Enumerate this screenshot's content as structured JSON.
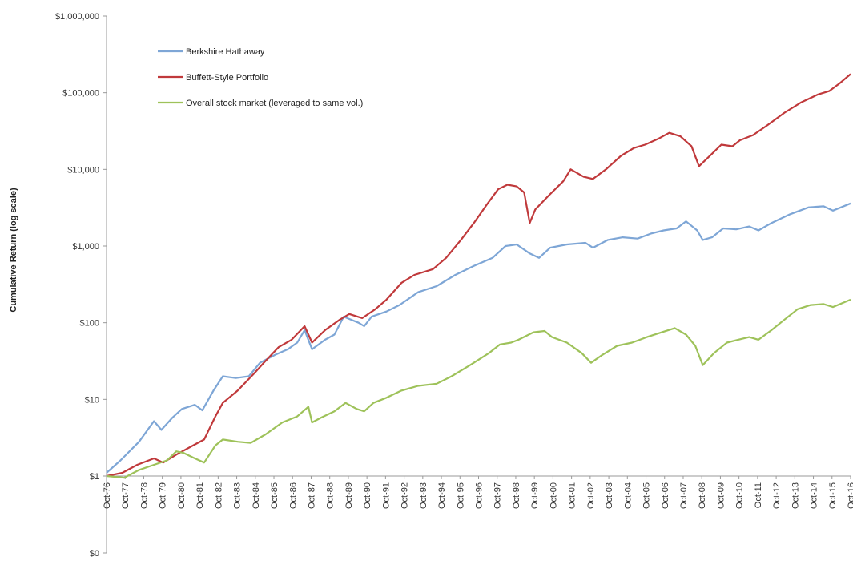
{
  "chart_data": {
    "type": "line",
    "title": "",
    "ylabel": "Cumulative Return  (log scale)",
    "xlabel": "",
    "y_scale": "log",
    "ylim": [
      1,
      1000000
    ],
    "y_ticks": [
      {
        "value": 1000000,
        "label": "$1,000,000"
      },
      {
        "value": 100000,
        "label": "$100,000"
      },
      {
        "value": 10000,
        "label": "$10,000"
      },
      {
        "value": 1000,
        "label": "$1,000"
      },
      {
        "value": 100,
        "label": "$100"
      },
      {
        "value": 10,
        "label": "$10"
      },
      {
        "value": 1,
        "label": "$1"
      }
    ],
    "y_extra_label": "$0",
    "x_range": [
      1976.75,
      2016.75
    ],
    "x_ticks": [
      "Oct-76",
      "Oct-77",
      "Oct-78",
      "Oct-79",
      "Oct-80",
      "Oct-81",
      "Oct-82",
      "Oct-83",
      "Oct-84",
      "Oct-85",
      "Oct-86",
      "Oct-87",
      "Oct-88",
      "Oct-89",
      "Oct-90",
      "Oct-91",
      "Oct-92",
      "Oct-93",
      "Oct-94",
      "Oct-95",
      "Oct-96",
      "Oct-97",
      "Oct-98",
      "Oct-99",
      "Oct-00",
      "Oct-01",
      "Oct-02",
      "Oct-03",
      "Oct-04",
      "Oct-05",
      "Oct-06",
      "Oct-07",
      "Oct-08",
      "Oct-09",
      "Oct-10",
      "Oct-11",
      "Oct-12",
      "Oct-13",
      "Oct-14",
      "Oct-15",
      "Oct-16"
    ],
    "grid": false,
    "legend_position": "top-left",
    "series": [
      {
        "name": "Berkshire Hathaway",
        "color": "#7ea6d6",
        "points": [
          [
            1976.75,
            1.1
          ],
          [
            1977.5,
            1.6
          ],
          [
            1978.5,
            2.8
          ],
          [
            1979.3,
            5.2
          ],
          [
            1979.7,
            4.0
          ],
          [
            1980.3,
            5.8
          ],
          [
            1980.8,
            7.5
          ],
          [
            1981.5,
            8.5
          ],
          [
            1981.9,
            7.2
          ],
          [
            1982.5,
            13
          ],
          [
            1983,
            20
          ],
          [
            1983.7,
            19
          ],
          [
            1984.4,
            20
          ],
          [
            1985,
            30
          ],
          [
            1985.8,
            38
          ],
          [
            1986.5,
            45
          ],
          [
            1987,
            55
          ],
          [
            1987.4,
            80
          ],
          [
            1987.8,
            45
          ],
          [
            1988.5,
            60
          ],
          [
            1989,
            70
          ],
          [
            1989.5,
            120
          ],
          [
            1990.3,
            100
          ],
          [
            1990.6,
            90
          ],
          [
            1991,
            120
          ],
          [
            1991.8,
            140
          ],
          [
            1992.5,
            170
          ],
          [
            1993.5,
            250
          ],
          [
            1994.5,
            300
          ],
          [
            1995.5,
            420
          ],
          [
            1996.5,
            550
          ],
          [
            1997.5,
            700
          ],
          [
            1998.2,
            1000
          ],
          [
            1998.8,
            1050
          ],
          [
            1999.5,
            800
          ],
          [
            2000,
            700
          ],
          [
            2000.6,
            950
          ],
          [
            2001.5,
            1050
          ],
          [
            2002.5,
            1100
          ],
          [
            2002.9,
            950
          ],
          [
            2003.7,
            1200
          ],
          [
            2004.5,
            1300
          ],
          [
            2005.3,
            1250
          ],
          [
            2006,
            1450
          ],
          [
            2006.7,
            1600
          ],
          [
            2007.4,
            1700
          ],
          [
            2007.9,
            2100
          ],
          [
            2008.5,
            1600
          ],
          [
            2008.8,
            1200
          ],
          [
            2009.3,
            1300
          ],
          [
            2009.9,
            1700
          ],
          [
            2010.6,
            1650
          ],
          [
            2011.3,
            1800
          ],
          [
            2011.8,
            1600
          ],
          [
            2012.5,
            2000
          ],
          [
            2013.5,
            2600
          ],
          [
            2014.5,
            3200
          ],
          [
            2015.3,
            3300
          ],
          [
            2015.8,
            2900
          ],
          [
            2016.75,
            3600
          ]
        ]
      },
      {
        "name": "Buffett-Style Portfolio",
        "color": "#c0393b",
        "points": [
          [
            1976.75,
            1.0
          ],
          [
            1977.6,
            1.1
          ],
          [
            1978.4,
            1.4
          ],
          [
            1979.3,
            1.7
          ],
          [
            1979.8,
            1.5
          ],
          [
            1980.5,
            1.9
          ],
          [
            1981.4,
            2.5
          ],
          [
            1982,
            3.0
          ],
          [
            1982.6,
            6
          ],
          [
            1983,
            9
          ],
          [
            1983.8,
            13
          ],
          [
            1984.7,
            22
          ],
          [
            1985.2,
            30
          ],
          [
            1986,
            48
          ],
          [
            1986.7,
            60
          ],
          [
            1987.4,
            90
          ],
          [
            1987.8,
            55
          ],
          [
            1988.5,
            80
          ],
          [
            1989.3,
            110
          ],
          [
            1989.8,
            130
          ],
          [
            1990.5,
            115
          ],
          [
            1991.2,
            150
          ],
          [
            1991.8,
            200
          ],
          [
            1992.6,
            330
          ],
          [
            1993.3,
            420
          ],
          [
            1994.3,
            500
          ],
          [
            1995,
            700
          ],
          [
            1995.8,
            1200
          ],
          [
            1996.5,
            2000
          ],
          [
            1997.2,
            3500
          ],
          [
            1997.8,
            5500
          ],
          [
            1998.3,
            6300
          ],
          [
            1998.8,
            6000
          ],
          [
            1999.2,
            5000
          ],
          [
            1999.5,
            2000
          ],
          [
            1999.8,
            3000
          ],
          [
            2000.5,
            4500
          ],
          [
            2001.3,
            7000
          ],
          [
            2001.7,
            10000
          ],
          [
            2002.4,
            8000
          ],
          [
            2002.9,
            7500
          ],
          [
            2003.6,
            10000
          ],
          [
            2004.4,
            15000
          ],
          [
            2005.1,
            19000
          ],
          [
            2005.7,
            21000
          ],
          [
            2006.4,
            25000
          ],
          [
            2007,
            30000
          ],
          [
            2007.6,
            27000
          ],
          [
            2008.2,
            20000
          ],
          [
            2008.6,
            11000
          ],
          [
            2009.3,
            16000
          ],
          [
            2009.8,
            21000
          ],
          [
            2010.4,
            20000
          ],
          [
            2010.8,
            24000
          ],
          [
            2011.5,
            28000
          ],
          [
            2012.3,
            38000
          ],
          [
            2013.2,
            55000
          ],
          [
            2014.1,
            75000
          ],
          [
            2015,
            95000
          ],
          [
            2015.6,
            105000
          ],
          [
            2016.2,
            135000
          ],
          [
            2016.75,
            175000
          ]
        ]
      },
      {
        "name": "Overall stock market (leveraged to same vol.)",
        "color": "#9ec25a",
        "points": [
          [
            1976.75,
            1.0
          ],
          [
            1977.7,
            0.95
          ],
          [
            1978.5,
            1.2
          ],
          [
            1979.3,
            1.4
          ],
          [
            1980,
            1.6
          ],
          [
            1980.5,
            2.1
          ],
          [
            1980.9,
            2.0
          ],
          [
            1981.5,
            1.7
          ],
          [
            1982,
            1.5
          ],
          [
            1982.6,
            2.5
          ],
          [
            1983,
            3.0
          ],
          [
            1983.8,
            2.8
          ],
          [
            1984.5,
            2.7
          ],
          [
            1985.3,
            3.5
          ],
          [
            1986.2,
            5
          ],
          [
            1987,
            6
          ],
          [
            1987.6,
            8
          ],
          [
            1987.8,
            5
          ],
          [
            1988.3,
            5.8
          ],
          [
            1989,
            7
          ],
          [
            1989.6,
            9
          ],
          [
            1990.2,
            7.5
          ],
          [
            1990.6,
            7
          ],
          [
            1991.1,
            9
          ],
          [
            1991.8,
            10.5
          ],
          [
            1992.6,
            13
          ],
          [
            1993.5,
            15
          ],
          [
            1994.5,
            16
          ],
          [
            1995.3,
            20
          ],
          [
            1996.3,
            28
          ],
          [
            1997.3,
            40
          ],
          [
            1997.9,
            52
          ],
          [
            1998.5,
            55
          ],
          [
            1998.9,
            60
          ],
          [
            1999.7,
            75
          ],
          [
            2000.3,
            78
          ],
          [
            2000.7,
            65
          ],
          [
            2001.5,
            55
          ],
          [
            2002.3,
            40
          ],
          [
            2002.8,
            30
          ],
          [
            2003.4,
            38
          ],
          [
            2004.2,
            50
          ],
          [
            2005,
            55
          ],
          [
            2005.8,
            65
          ],
          [
            2006.6,
            75
          ],
          [
            2007.3,
            85
          ],
          [
            2007.9,
            70
          ],
          [
            2008.4,
            50
          ],
          [
            2008.8,
            28
          ],
          [
            2009.4,
            40
          ],
          [
            2010.1,
            55
          ],
          [
            2010.7,
            60
          ],
          [
            2011.3,
            65
          ],
          [
            2011.8,
            60
          ],
          [
            2012.5,
            80
          ],
          [
            2013.2,
            110
          ],
          [
            2013.9,
            150
          ],
          [
            2014.6,
            170
          ],
          [
            2015.3,
            175
          ],
          [
            2015.8,
            160
          ],
          [
            2016.75,
            200
          ]
        ]
      }
    ]
  }
}
